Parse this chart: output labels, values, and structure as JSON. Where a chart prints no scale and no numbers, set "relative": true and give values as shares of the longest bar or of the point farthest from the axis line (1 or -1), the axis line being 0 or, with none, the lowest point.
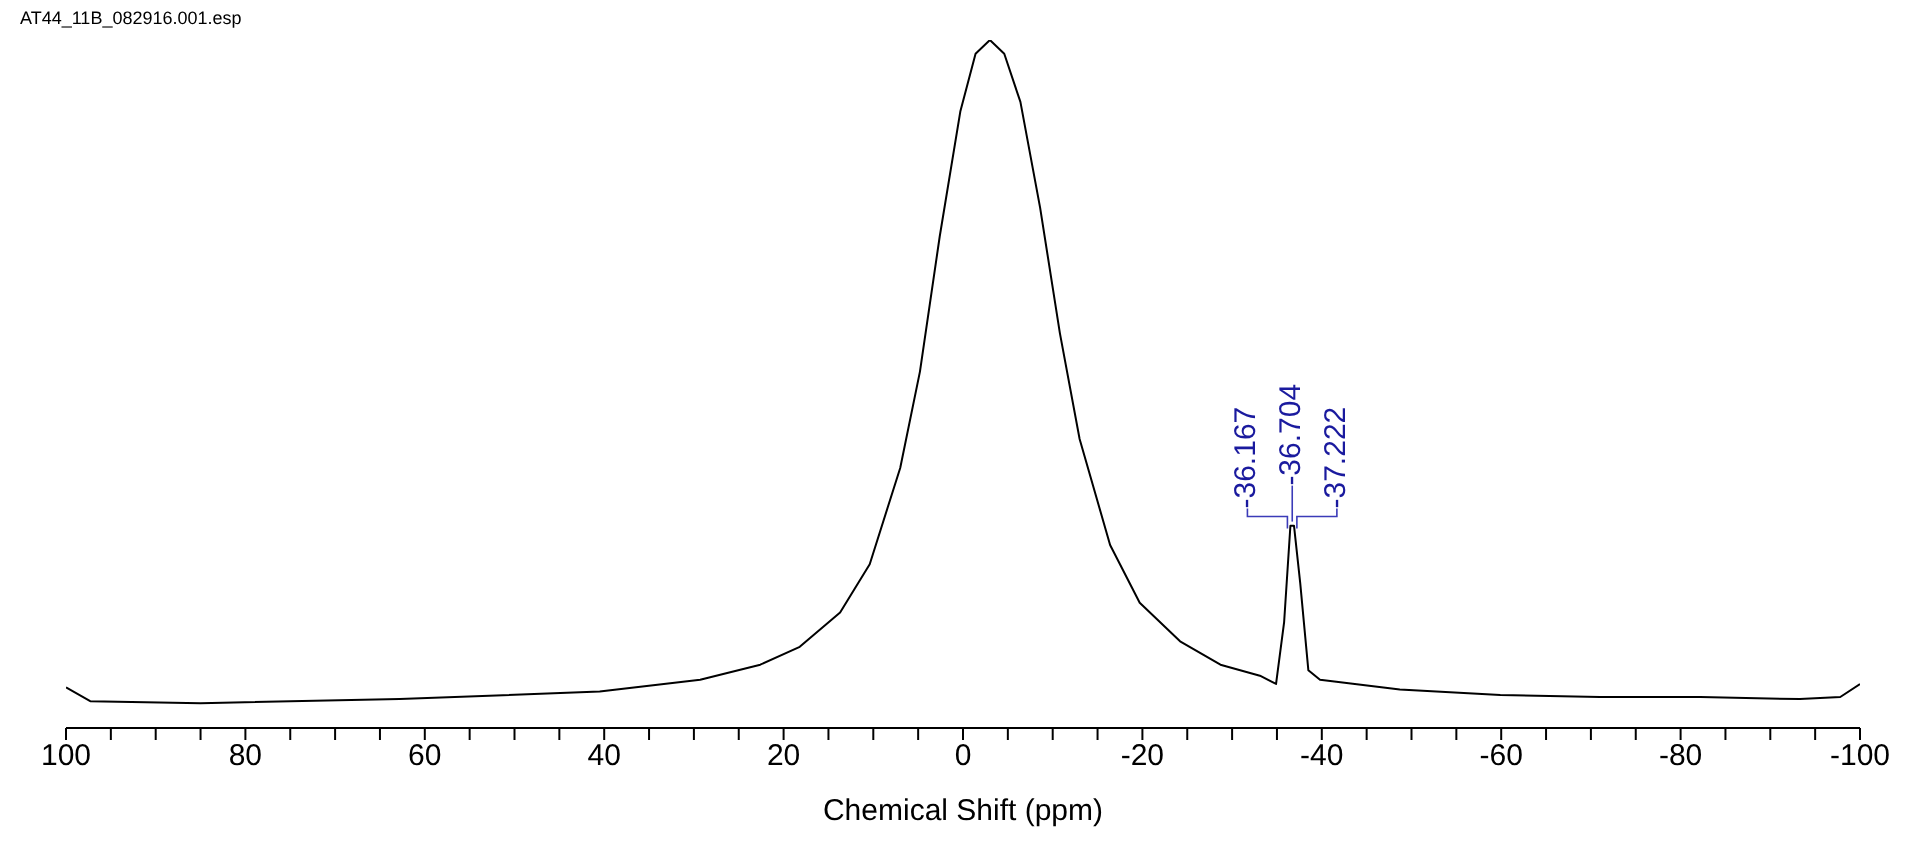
{
  "chart_data": {
    "type": "line",
    "relative": true,
    "xlabel": "Chemical Shift (ppm)",
    "xlim": [
      100,
      -100
    ],
    "xticks": [
      100,
      {
        "value": 95,
        "label": null
      },
      {
        "value": 90,
        "label": null
      },
      {
        "value": 85,
        "label": null
      },
      80,
      {
        "value": 75,
        "label": null
      },
      {
        "value": 70,
        "label": null
      },
      {
        "value": 65,
        "label": null
      },
      60,
      {
        "value": 55,
        "label": null
      },
      {
        "value": 50,
        "label": null
      },
      {
        "value": 45,
        "label": null
      },
      40,
      {
        "value": 35,
        "label": null
      },
      {
        "value": 30,
        "label": null
      },
      {
        "value": 25,
        "label": null
      },
      20,
      {
        "value": 15,
        "label": null
      },
      {
        "value": 10,
        "label": null
      },
      {
        "value": 5,
        "label": null
      },
      0,
      {
        "value": -5,
        "label": null
      },
      {
        "value": -10,
        "label": null
      },
      {
        "value": -15,
        "label": null
      },
      -20,
      {
        "value": -25,
        "label": null
      },
      {
        "value": -30,
        "label": null
      },
      {
        "value": -35,
        "label": null
      },
      -40,
      {
        "value": -45,
        "label": null
      },
      {
        "value": -50,
        "label": null
      },
      {
        "value": -55,
        "label": null
      },
      -60,
      {
        "value": -65,
        "label": null
      },
      {
        "value": -70,
        "label": null
      },
      {
        "value": -75,
        "label": null
      },
      -80,
      {
        "value": -85,
        "label": null
      },
      {
        "value": -90,
        "label": null
      },
      {
        "value": -95,
        "label": null
      },
      -100
    ],
    "grid": false,
    "marker": "none",
    "line_style": "solid",
    "series": [
      {
        "color": "#000000",
        "x": [
          100,
          97.3,
          85,
          62.8,
          40.5,
          29.3,
          22.6,
          18.2,
          13.7,
          10.4,
          7.0,
          4.8,
          2.6,
          0.3,
          -1.4,
          -3.0,
          -4.6,
          -6.4,
          -8.6,
          -10.8,
          -13.0,
          -16.4,
          -19.7,
          -24.2,
          -28.7,
          -33.1,
          -34.9,
          -35.8,
          -36.5,
          -36.9,
          -37.6,
          -38.5,
          -39.8,
          -48.7,
          -59.9,
          -71.0,
          -82.2,
          -93.3,
          -97.8,
          -100
        ],
        "values": [
          0.059,
          0.039,
          0.036,
          0.042,
          0.053,
          0.07,
          0.092,
          0.118,
          0.168,
          0.238,
          0.378,
          0.518,
          0.714,
          0.896,
          0.98,
          1,
          0.98,
          0.91,
          0.756,
          0.574,
          0.42,
          0.266,
          0.182,
          0.126,
          0.092,
          0.076,
          0.064,
          0.154,
          0.294,
          0.294,
          0.21,
          0.084,
          0.07,
          0.056,
          0.048,
          0.045,
          0.045,
          0.042,
          0.045,
          0.064
        ]
      }
    ],
    "annotations": [
      "AT44_11B_082916.001.esp",
      {
        "text": "-36.167",
        "x": -36.167,
        "y": 0.29
      },
      {
        "text": "-36.704",
        "x": -36.704,
        "y": 0.3
      },
      {
        "text": "-37.222",
        "x": -37.222,
        "y": 0.29
      }
    ]
  }
}
